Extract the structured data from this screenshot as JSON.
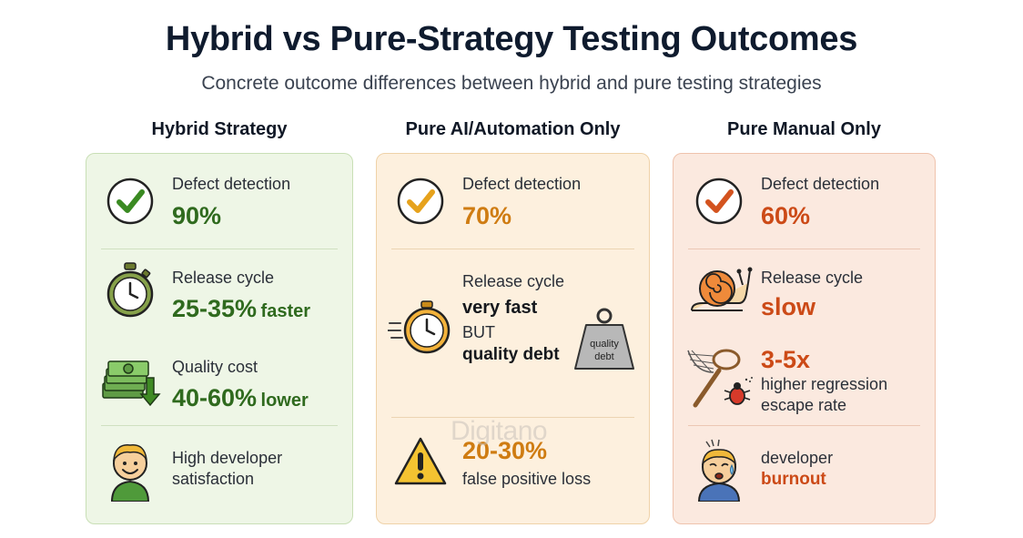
{
  "title": "Hybrid vs Pure-Strategy Testing Outcomes",
  "subtitle": "Concrete outcome differences between hybrid and pure testing strategies",
  "watermark": "Digitano",
  "columns": {
    "hybrid": {
      "heading": "Hybrid Strategy",
      "accent": "#2f6a1e",
      "items": [
        {
          "label": "Defect detection",
          "value": "90%",
          "icon": "check-circle-icon"
        },
        {
          "label": "Release cycle",
          "value": "25-35%",
          "suffix": "faster",
          "icon": "stopwatch-icon"
        },
        {
          "label": "Quality cost",
          "value": "40-60%",
          "suffix": "lower",
          "icon": "money-down-arrow-icon"
        },
        {
          "label_line1": "High developer",
          "label_line2": "satisfaction",
          "icon": "happy-developer-icon"
        }
      ]
    },
    "ai": {
      "heading": "Pure AI/Automation Only",
      "accent": "#cf7c12",
      "items": [
        {
          "label": "Defect detection",
          "value": "70%",
          "icon": "check-circle-icon"
        },
        {
          "label": "Release cycle",
          "line1": "very fast",
          "line2": "BUT",
          "line3": "quality debt",
          "badge": "quality debt",
          "icon": "fast-stopwatch-icon"
        },
        {
          "value": "20-30%",
          "label": "false positive loss",
          "icon": "warning-icon"
        }
      ]
    },
    "manual": {
      "heading": "Pure Manual Only",
      "accent": "#cc4a17",
      "items": [
        {
          "label": "Defect detection",
          "value": "60%",
          "icon": "check-circle-icon"
        },
        {
          "label": "Release cycle",
          "value": "slow",
          "icon": "snail-icon"
        },
        {
          "value": "3-5x",
          "label_line1": "higher regression",
          "label_line2": "escape rate",
          "icon": "bug-net-icon"
        },
        {
          "label": "developer",
          "value": "burnout",
          "icon": "stressed-developer-icon"
        }
      ]
    }
  }
}
